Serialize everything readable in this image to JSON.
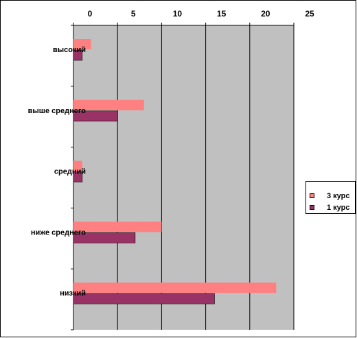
{
  "chart_data": {
    "type": "bar",
    "orientation": "horizontal",
    "categories": [
      "высокий",
      "выше среднего",
      "средний",
      "ниже среднего",
      "низкий"
    ],
    "series": [
      {
        "name": "3 курс",
        "color": "#ff8080",
        "values": [
          2,
          8,
          1,
          10,
          23
        ]
      },
      {
        "name": "1 курс",
        "color": "#993366",
        "values": [
          1,
          5,
          1,
          7,
          16
        ]
      }
    ],
    "xlim": [
      0,
      25
    ],
    "x_ticks": [
      0,
      5,
      10,
      15,
      20,
      25
    ],
    "x_tick_labels": [
      "0",
      "5",
      "10",
      "15",
      "20",
      "25"
    ],
    "plot_background": "#c0c0c0",
    "grid": true,
    "legend_position": "right"
  }
}
